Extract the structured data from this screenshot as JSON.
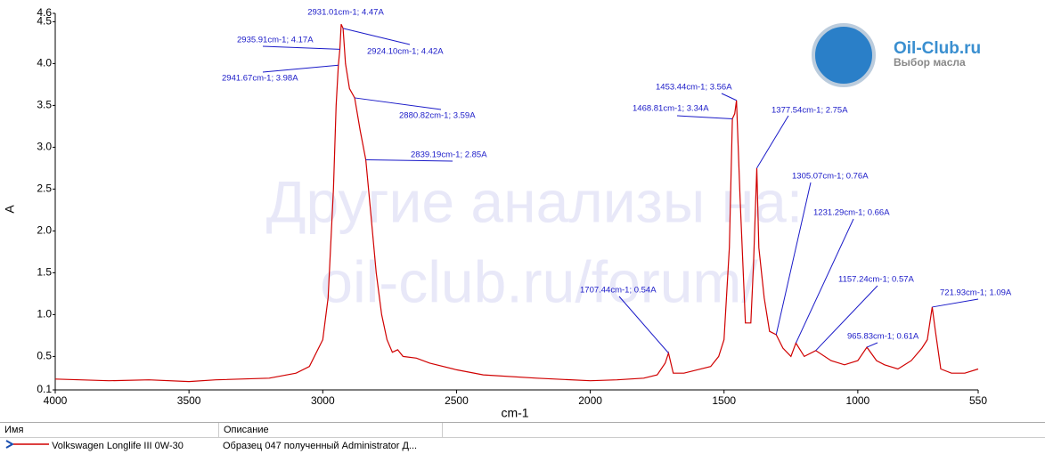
{
  "chart_data": {
    "type": "line",
    "x_label": "cm-1",
    "y_label": "A",
    "watermark": [
      "Другие анализы на:",
      "oil-club.ru/forum/"
    ],
    "logo": {
      "title": "Oil-Club.ru",
      "subtitle": "Выбор масла"
    },
    "xlim": [
      4000,
      550
    ],
    "ylim": [
      0.1,
      4.6
    ],
    "xticks": [
      4000,
      3500,
      3000,
      2500,
      2000,
      1500,
      1000,
      550
    ],
    "yticks": [
      0.1,
      0.5,
      {
        "value": 1,
        "label": "1.0"
      },
      1.5,
      {
        "value": 2,
        "label": "2.0"
      },
      2.5,
      {
        "value": 3,
        "label": "3.0"
      },
      3.5,
      {
        "value": 4,
        "label": "4.0"
      },
      4.5,
      4.6
    ],
    "grid": false,
    "series": [
      {
        "name": "Volkswagen Longlife III 0W-30",
        "color": "#d00000",
        "x": [
          4000,
          3800,
          3650,
          3500,
          3400,
          3200,
          3100,
          3050,
          3000,
          2980,
          2960,
          2950,
          2941.67,
          2935.91,
          2931.01,
          2924.1,
          2915,
          2900,
          2880.82,
          2860,
          2839.19,
          2820,
          2800,
          2780,
          2760,
          2740,
          2720,
          2700,
          2650,
          2600,
          2500,
          2400,
          2200,
          2000,
          1900,
          1800,
          1750,
          1720,
          1707.44,
          1690,
          1650,
          1600,
          1550,
          1520,
          1500,
          1480,
          1468.81,
          1460,
          1453.44,
          1440,
          1420,
          1400,
          1390,
          1377.54,
          1370,
          1350,
          1330,
          1305.07,
          1280,
          1250,
          1231.29,
          1200,
          1157.24,
          1100,
          1050,
          1000,
          965.83,
          930,
          900,
          850,
          800,
          760,
          740,
          721.93,
          710,
          690,
          650,
          600,
          550
        ],
        "values": [
          0.23,
          0.21,
          0.22,
          0.2,
          0.22,
          0.24,
          0.3,
          0.38,
          0.7,
          1.2,
          2.5,
          3.5,
          3.98,
          4.17,
          4.47,
          4.42,
          4.0,
          3.7,
          3.59,
          3.2,
          2.85,
          2.2,
          1.5,
          1.0,
          0.7,
          0.55,
          0.58,
          0.5,
          0.48,
          0.42,
          0.34,
          0.28,
          0.24,
          0.21,
          0.22,
          0.24,
          0.28,
          0.42,
          0.54,
          0.3,
          0.3,
          0.34,
          0.38,
          0.5,
          0.7,
          1.8,
          3.34,
          3.4,
          3.56,
          2.4,
          0.9,
          0.9,
          1.6,
          2.75,
          1.8,
          1.2,
          0.8,
          0.76,
          0.6,
          0.5,
          0.66,
          0.5,
          0.57,
          0.45,
          0.4,
          0.45,
          0.61,
          0.45,
          0.4,
          0.35,
          0.45,
          0.6,
          0.7,
          1.09,
          0.8,
          0.35,
          0.3,
          0.3,
          0.35
        ]
      }
    ],
    "annotations": [
      {
        "text": "2931.01cm-1; 4.47A",
        "x": 2931.01,
        "y": 4.47
      },
      {
        "text": "2935.91cm-1; 4.17A",
        "x": 2935.91,
        "y": 4.17
      },
      {
        "text": "2924.10cm-1; 4.42A",
        "x": 2924.1,
        "y": 4.42
      },
      {
        "text": "2941.67cm-1; 3.98A",
        "x": 2941.67,
        "y": 3.98
      },
      {
        "text": "2880.82cm-1; 3.59A",
        "x": 2880.82,
        "y": 3.59
      },
      {
        "text": "2839.19cm-1; 2.85A",
        "x": 2839.19,
        "y": 2.85
      },
      {
        "text": "1453.44cm-1; 3.56A",
        "x": 1453.44,
        "y": 3.56
      },
      {
        "text": "1468.81cm-1; 3.34A",
        "x": 1468.81,
        "y": 3.34
      },
      {
        "text": "1377.54cm-1; 2.75A",
        "x": 1377.54,
        "y": 2.75
      },
      {
        "text": "1305.07cm-1; 0.76A",
        "x": 1305.07,
        "y": 0.76
      },
      {
        "text": "1231.29cm-1; 0.66A",
        "x": 1231.29,
        "y": 0.66
      },
      {
        "text": "1157.24cm-1; 0.57A",
        "x": 1157.24,
        "y": 0.57
      },
      {
        "text": "965.83cm-1; 0.61A",
        "x": 965.83,
        "y": 0.61
      },
      {
        "text": "721.93cm-1; 1.09A",
        "x": 721.93,
        "y": 1.09
      },
      {
        "text": "1707.44cm-1; 0.54A",
        "x": 1707.44,
        "y": 0.54
      }
    ]
  },
  "table": {
    "headers": [
      "Имя",
      "Описание"
    ],
    "rows": [
      [
        "Volkswagen Longlife III 0W-30",
        "Образец 047 полученный Administrator Д..."
      ]
    ]
  }
}
